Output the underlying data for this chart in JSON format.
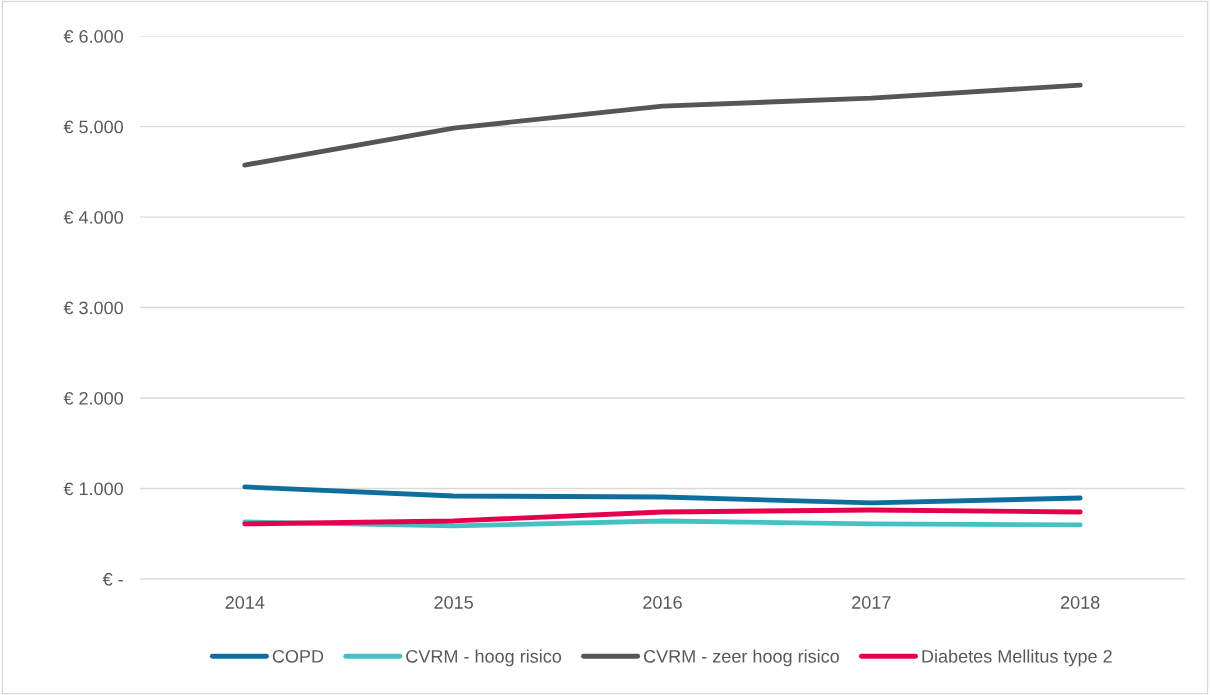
{
  "chart_data": {
    "type": "line",
    "categories": [
      "2014",
      "2015",
      "2016",
      "2017",
      "2018"
    ],
    "series": [
      {
        "name": "COPD",
        "color": "#0e6f9e",
        "values": [
          1017,
          917,
          906,
          840,
          895
        ]
      },
      {
        "name": "CVRM - hoog risico",
        "color": "#45c1c4",
        "values": [
          630,
          586,
          641,
          608,
          597
        ]
      },
      {
        "name": "CVRM - zeer hoog risico",
        "color": "#585655",
        "values": [
          4575,
          4983,
          5227,
          5315,
          5459
        ]
      },
      {
        "name": "Diabetes Mellitus type 2",
        "color": "#e4004f",
        "values": [
          608,
          641,
          740,
          762,
          740
        ]
      }
    ],
    "ylim": [
      0,
      6000
    ],
    "yticks": [
      {
        "value": 0,
        "label": "€ -"
      },
      {
        "value": 1000,
        "label": "€ 1.000"
      },
      {
        "value": 2000,
        "label": "€ 2.000"
      },
      {
        "value": 3000,
        "label": "€ 3.000"
      },
      {
        "value": 4000,
        "label": "€ 4.000"
      },
      {
        "value": 5000,
        "label": "€ 5.000"
      },
      {
        "value": 6000,
        "label": "€ 6.000"
      }
    ],
    "grid": "y",
    "legend": "bottom",
    "marker": "none",
    "line_style": "solid"
  }
}
